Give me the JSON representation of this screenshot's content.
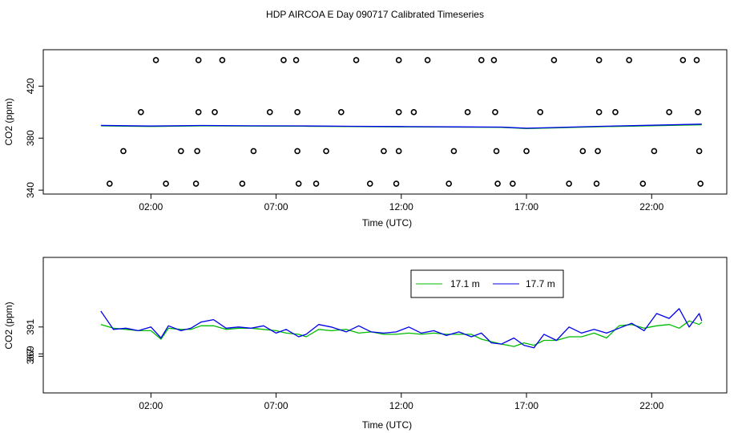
{
  "title": "HDP AIRCOA E  Day 090717  Calibrated Timeseries",
  "chart_data": [
    {
      "type": "line",
      "xlabel": "Time (UTC)",
      "ylabel": "CO2 (ppm)",
      "x_ticks": [
        "02:00",
        "07:00",
        "12:00",
        "17:00",
        "22:00"
      ],
      "x_tick_hours": [
        2,
        7,
        12,
        17,
        22
      ],
      "xlim": [
        -2.3,
        25.0
      ],
      "y_ticks": [
        340,
        380,
        420
      ],
      "ylim": [
        337,
        448
      ],
      "grid": false,
      "legend": false,
      "series_colors": [
        "#00bb00",
        "#0000ee"
      ],
      "line_series": [
        {
          "x": [
            0.0,
            2.0,
            4.0,
            6.0,
            8.0,
            10.0,
            12.0,
            14.0,
            16.0,
            17.0,
            18.0,
            20.0,
            22.0,
            24.0
          ],
          "values": [
            389.5,
            389.0,
            389.4,
            389.3,
            389.2,
            388.9,
            388.7,
            388.5,
            388.3,
            387.4,
            387.8,
            388.8,
            389.5,
            390.3
          ]
        },
        {
          "x": [
            0.0,
            2.0,
            4.0,
            6.0,
            8.0,
            10.0,
            12.0,
            14.0,
            16.0,
            17.0,
            18.0,
            20.0,
            22.0,
            24.0
          ],
          "values": [
            389.8,
            389.3,
            389.7,
            389.5,
            389.4,
            389.1,
            388.9,
            388.7,
            388.5,
            387.6,
            388.1,
            389.1,
            389.9,
            390.8
          ]
        }
      ],
      "markers": [
        {
          "x": 2.2,
          "y": 440
        },
        {
          "x": 3.9,
          "y": 440
        },
        {
          "x": 4.85,
          "y": 440
        },
        {
          "x": 7.3,
          "y": 440
        },
        {
          "x": 7.8,
          "y": 440
        },
        {
          "x": 10.2,
          "y": 440
        },
        {
          "x": 11.9,
          "y": 440
        },
        {
          "x": 13.05,
          "y": 440
        },
        {
          "x": 15.2,
          "y": 440
        },
        {
          "x": 15.7,
          "y": 440
        },
        {
          "x": 18.1,
          "y": 440
        },
        {
          "x": 19.9,
          "y": 440
        },
        {
          "x": 21.1,
          "y": 440
        },
        {
          "x": 23.25,
          "y": 440
        },
        {
          "x": 23.8,
          "y": 440
        },
        {
          "x": 1.6,
          "y": 400
        },
        {
          "x": 3.9,
          "y": 400
        },
        {
          "x": 4.55,
          "y": 400
        },
        {
          "x": 6.75,
          "y": 400
        },
        {
          "x": 7.85,
          "y": 400
        },
        {
          "x": 9.6,
          "y": 400
        },
        {
          "x": 11.9,
          "y": 400
        },
        {
          "x": 12.5,
          "y": 400
        },
        {
          "x": 14.65,
          "y": 400
        },
        {
          "x": 15.75,
          "y": 400
        },
        {
          "x": 17.55,
          "y": 400
        },
        {
          "x": 19.9,
          "y": 400
        },
        {
          "x": 20.55,
          "y": 400
        },
        {
          "x": 22.7,
          "y": 400
        },
        {
          "x": 23.85,
          "y": 400
        },
        {
          "x": 0.9,
          "y": 370
        },
        {
          "x": 3.2,
          "y": 370
        },
        {
          "x": 3.85,
          "y": 370
        },
        {
          "x": 6.1,
          "y": 370
        },
        {
          "x": 7.85,
          "y": 370
        },
        {
          "x": 9.0,
          "y": 370
        },
        {
          "x": 11.3,
          "y": 370
        },
        {
          "x": 11.9,
          "y": 370
        },
        {
          "x": 14.1,
          "y": 370
        },
        {
          "x": 15.8,
          "y": 370
        },
        {
          "x": 17.0,
          "y": 370
        },
        {
          "x": 19.25,
          "y": 370
        },
        {
          "x": 19.85,
          "y": 370
        },
        {
          "x": 22.1,
          "y": 370
        },
        {
          "x": 23.9,
          "y": 370
        },
        {
          "x": 0.35,
          "y": 345
        },
        {
          "x": 2.6,
          "y": 345
        },
        {
          "x": 3.8,
          "y": 345
        },
        {
          "x": 5.65,
          "y": 345
        },
        {
          "x": 7.9,
          "y": 345
        },
        {
          "x": 8.6,
          "y": 345
        },
        {
          "x": 10.75,
          "y": 345
        },
        {
          "x": 11.8,
          "y": 345
        },
        {
          "x": 13.9,
          "y": 345
        },
        {
          "x": 15.85,
          "y": 345
        },
        {
          "x": 16.45,
          "y": 345
        },
        {
          "x": 18.7,
          "y": 345
        },
        {
          "x": 19.8,
          "y": 345
        },
        {
          "x": 21.65,
          "y": 345
        },
        {
          "x": 23.95,
          "y": 345
        }
      ]
    },
    {
      "type": "line",
      "xlabel": "Time (UTC)",
      "ylabel": "CO2 (ppm)",
      "x_ticks": [
        "02:00",
        "07:00",
        "12:00",
        "17:00",
        "22:00"
      ],
      "x_tick_hours": [
        2,
        7,
        12,
        17,
        22
      ],
      "xlim": [
        -2.3,
        25.0
      ],
      "y_ticks": [
        367,
        369,
        391
      ],
      "ylim": [
        337,
        448
      ],
      "grid": false,
      "legend": "top-right",
      "series": [
        {
          "name": "17.1 m",
          "color": "#00bb00",
          "x": [
            0.0,
            0.5,
            1.0,
            1.5,
            2.0,
            2.4,
            2.7,
            3.2,
            3.6,
            4.0,
            4.5,
            5.0,
            5.5,
            6.0,
            6.5,
            7.0,
            7.4,
            7.9,
            8.2,
            8.7,
            9.2,
            9.8,
            10.3,
            10.8,
            11.3,
            11.8,
            12.3,
            12.8,
            13.3,
            13.8,
            14.3,
            14.8,
            15.2,
            15.6,
            16.0,
            16.5,
            16.9,
            17.3,
            17.7,
            18.2,
            18.7,
            19.2,
            19.7,
            20.2,
            20.7,
            21.2,
            21.7,
            22.2,
            22.7,
            23.1,
            23.5,
            23.9,
            24.0
          ],
          "values": [
            393,
            390,
            389,
            388,
            388,
            381,
            390,
            389,
            389,
            392,
            392,
            389,
            390,
            390,
            389,
            388,
            386,
            385,
            383,
            389,
            388,
            389,
            386,
            387,
            385,
            385,
            386,
            385,
            386,
            385,
            385,
            385,
            381,
            379,
            377,
            375,
            378,
            376,
            380,
            380,
            383,
            383,
            386,
            382,
            392,
            393,
            390,
            392,
            393,
            390,
            396,
            393,
            395
          ]
        },
        {
          "name": "17.7 m",
          "color": "#0000ee",
          "x": [
            0.0,
            0.5,
            1.0,
            1.5,
            2.0,
            2.4,
            2.7,
            3.2,
            3.6,
            4.0,
            4.5,
            5.0,
            5.5,
            6.0,
            6.5,
            7.0,
            7.4,
            7.9,
            8.2,
            8.7,
            9.2,
            9.8,
            10.3,
            10.8,
            11.3,
            11.8,
            12.3,
            12.8,
            13.3,
            13.8,
            14.3,
            14.8,
            15.2,
            15.6,
            16.0,
            16.5,
            16.9,
            17.3,
            17.7,
            18.2,
            18.7,
            19.2,
            19.7,
            20.2,
            20.7,
            21.2,
            21.7,
            22.2,
            22.7,
            23.1,
            23.5,
            23.9,
            24.0
          ],
          "values": [
            404,
            389,
            390,
            388,
            391,
            382,
            392,
            388,
            390,
            395,
            397,
            390,
            391,
            390,
            392,
            386,
            389,
            383,
            385,
            393,
            391,
            387,
            392,
            387,
            386,
            387,
            391,
            386,
            388,
            384,
            387,
            383,
            386,
            378,
            377,
            382,
            376,
            374,
            385,
            380,
            391,
            386,
            389,
            386,
            390,
            394,
            388,
            402,
            398,
            406,
            391,
            402,
            396
          ]
        }
      ]
    }
  ]
}
